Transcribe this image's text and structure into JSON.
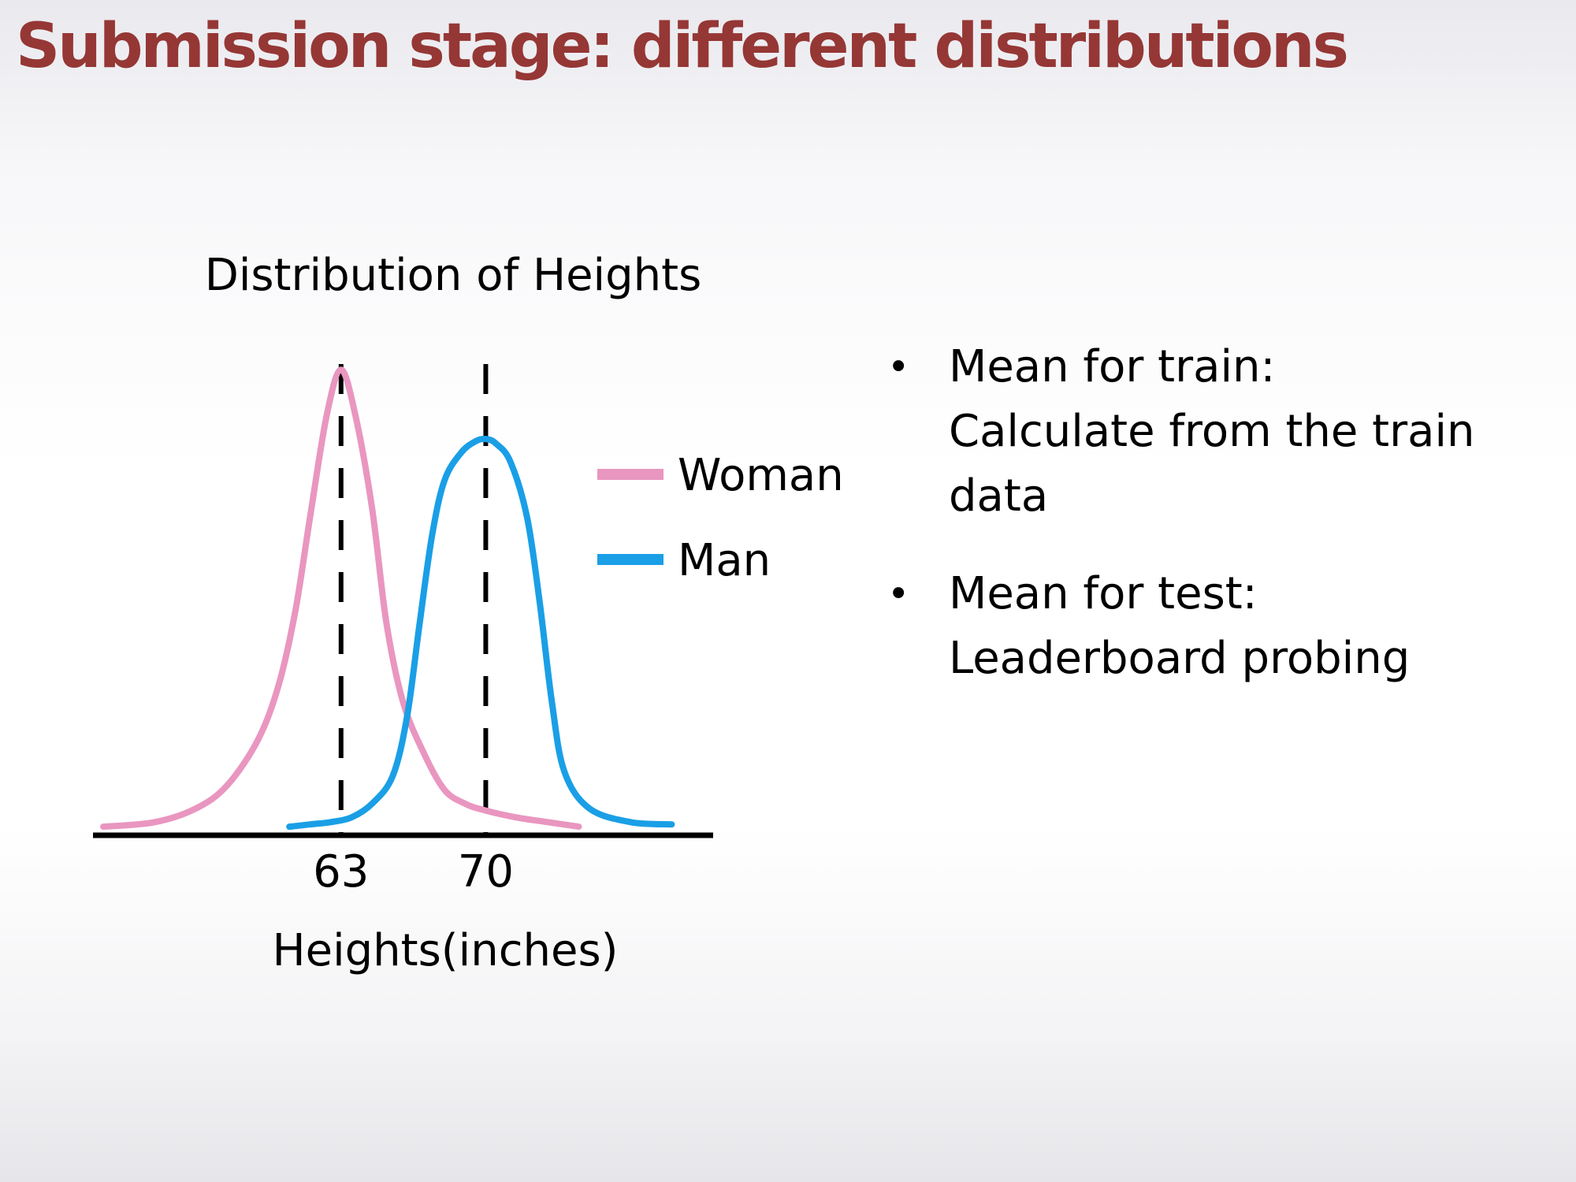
{
  "slide": {
    "title": "Submission stage: different distributions"
  },
  "bullets": [
    {
      "heading": "Mean for train:",
      "text_lines": [
        "Calculate from the train",
        "data"
      ]
    },
    {
      "heading": "Mean for test:",
      "text_lines": [
        "Leaderboard probing"
      ]
    }
  ],
  "chart_data": {
    "type": "line",
    "title": "Distribution of Heights",
    "xlabel": "Heights(inches)",
    "ylabel": "",
    "x_ticks": [
      63,
      70
    ],
    "xlim": [
      51,
      81
    ],
    "ylim": [
      0,
      1.05
    ],
    "grid": false,
    "legend_position": "right",
    "series": [
      {
        "name": "Woman",
        "color": "#e996c0",
        "x": [
          51.5,
          54,
          56,
          57.5,
          59,
          60,
          60.8,
          61.5,
          62.3,
          63,
          63.7,
          64.5,
          65.2,
          66,
          67,
          68,
          69,
          70,
          71.5,
          73,
          74.5
        ],
        "y": [
          0.01,
          0.02,
          0.05,
          0.1,
          0.2,
          0.32,
          0.48,
          0.68,
          0.9,
          1.0,
          0.9,
          0.7,
          0.45,
          0.28,
          0.17,
          0.09,
          0.06,
          0.045,
          0.03,
          0.02,
          0.01
        ]
      },
      {
        "name": "Man",
        "color": "#1a9fe6",
        "x": [
          60.5,
          61.5,
          62.5,
          63.5,
          64.5,
          65.5,
          66.2,
          66.8,
          67.4,
          68,
          68.8,
          69.5,
          70,
          70.5,
          71.2,
          72,
          72.6,
          73.2,
          73.8,
          75,
          77,
          79
        ],
        "y": [
          0.01,
          0.015,
          0.02,
          0.03,
          0.06,
          0.12,
          0.25,
          0.45,
          0.64,
          0.76,
          0.82,
          0.845,
          0.85,
          0.84,
          0.8,
          0.68,
          0.5,
          0.28,
          0.13,
          0.05,
          0.02,
          0.015
        ]
      }
    ],
    "mean_lines": [
      63,
      70
    ]
  }
}
